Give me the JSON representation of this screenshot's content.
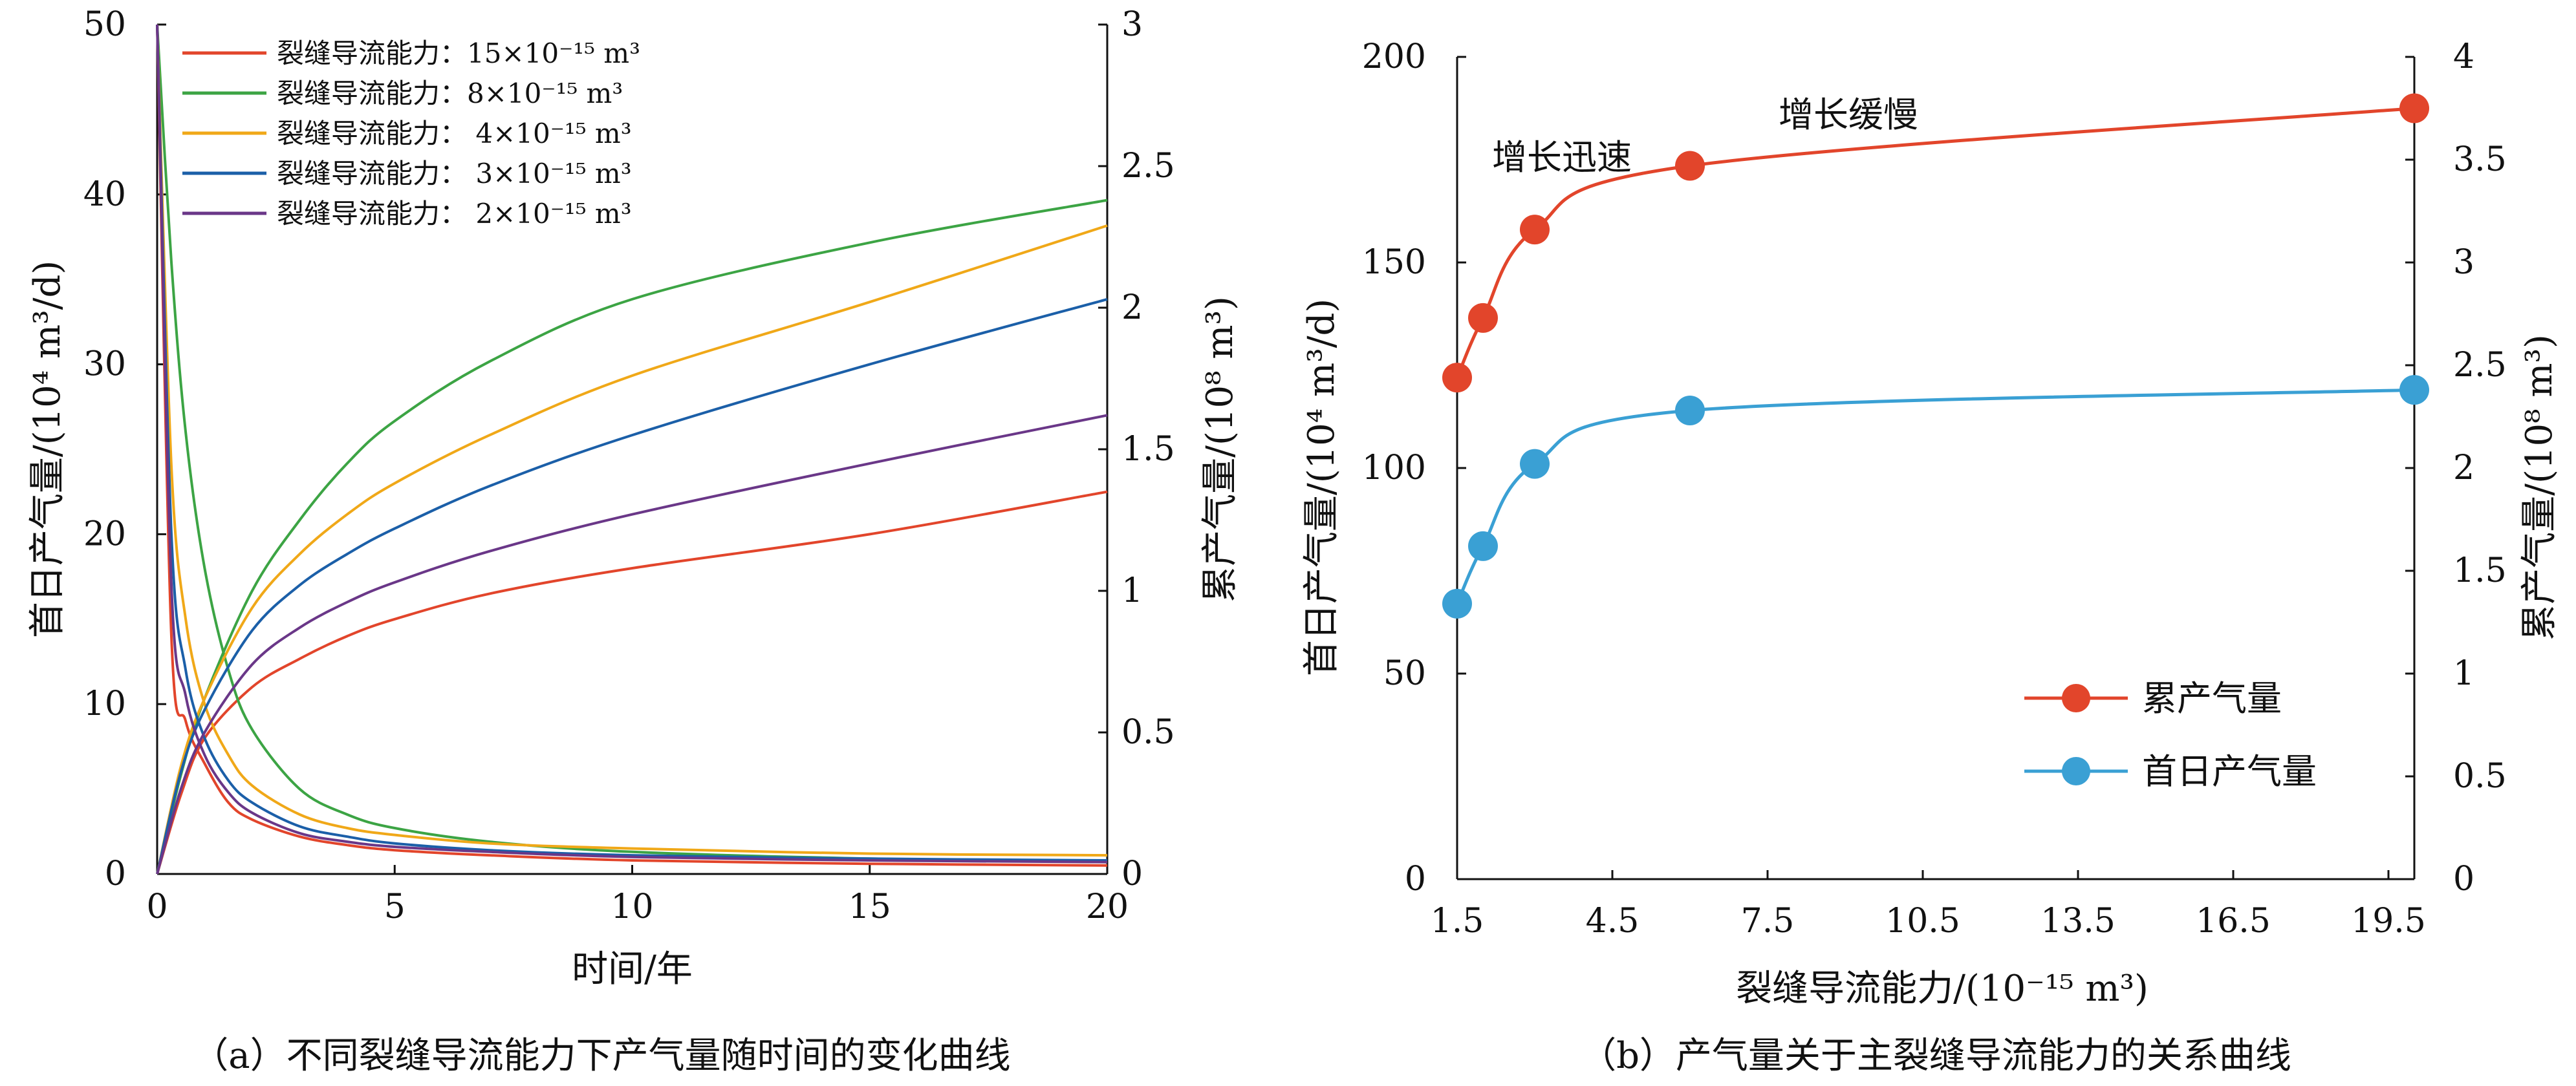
{
  "colors": {
    "red": "#e2452b",
    "green": "#3ca444",
    "yellow": "#f0a818",
    "blue": "#1b5fa8",
    "purple": "#6a3788",
    "light_blue": "#3aa0d4"
  },
  "chart_data": [
    {
      "type": "line",
      "caption": "（a）不同裂缝导流能力下产气量随时间的变化曲线",
      "xlabel": "时间/年",
      "ylabel_left": "首日产气量/(10⁴ m³/d)",
      "ylabel_right": "累产气量/(10⁸ m³)",
      "xlim": [
        0,
        20
      ],
      "ylim_left": [
        0,
        50
      ],
      "ylim_right": [
        0,
        3
      ],
      "x_ticks": [
        "0",
        "5",
        "10",
        "15",
        "20"
      ],
      "y_left_ticks": [
        "0",
        "10",
        "20",
        "30",
        "40",
        "50"
      ],
      "y_right_ticks": [
        "0",
        "0.5",
        "1",
        "1.5",
        "2",
        "2.5",
        "3"
      ],
      "legend_position": "top-left",
      "series": [
        {
          "name": "裂缝导流能力：15×10⁻¹⁵ m³",
          "color": "red",
          "daily_rate": {
            "x": [
              0,
              0.3,
              0.6,
              1,
              1.5,
              2,
              3,
              4,
              5,
              7,
              10,
              15,
              20
            ],
            "y": [
              50,
              14,
              9,
              6.5,
              4.2,
              3.2,
              2.2,
              1.7,
              1.4,
              1.1,
              0.8,
              0.6,
              0.5
            ]
          },
          "cumulative": {
            "x": [
              0,
              0.5,
              1,
              2,
              3,
              4,
              5,
              7,
              10,
              15,
              20
            ],
            "y": [
              0,
              0.28,
              0.48,
              0.66,
              0.76,
              0.84,
              0.9,
              0.99,
              1.08,
              1.2,
              1.35
            ]
          }
        },
        {
          "name": "裂缝导流能力：8×10⁻¹⁵ m³",
          "color": "green",
          "daily_rate": {
            "x": [
              0,
              0.3,
              0.6,
              1,
              1.5,
              2,
              3,
              4,
              5,
              7,
              10,
              15,
              20
            ],
            "y": [
              50,
              36,
              26,
              18,
              12,
              8.5,
              5,
              3.5,
              2.7,
              1.9,
              1.3,
              0.9,
              0.7
            ]
          },
          "cumulative": {
            "x": [
              0,
              0.5,
              1,
              2,
              3,
              4,
              5,
              7,
              10,
              15,
              20
            ],
            "y": [
              0,
              0.35,
              0.62,
              1.0,
              1.25,
              1.45,
              1.6,
              1.81,
              2.03,
              2.23,
              2.38
            ]
          }
        },
        {
          "name": "裂缝导流能力： 4×10⁻¹⁵ m³",
          "color": "yellow",
          "daily_rate": {
            "x": [
              0,
              0.3,
              0.6,
              1,
              1.5,
              2,
              3,
              4,
              5,
              7,
              10,
              15,
              20
            ],
            "y": [
              50,
              24,
              15,
              10,
              7,
              5.2,
              3.5,
              2.7,
              2.3,
              1.8,
              1.5,
              1.2,
              1.1
            ]
          },
          "cumulative": {
            "x": [
              0,
              0.5,
              1,
              2,
              3,
              4,
              5,
              7,
              10,
              15,
              20
            ],
            "y": [
              0,
              0.38,
              0.62,
              0.94,
              1.13,
              1.27,
              1.38,
              1.55,
              1.76,
              2.02,
              2.29
            ]
          }
        },
        {
          "name": "裂缝导流能力： 3×10⁻¹⁵ m³",
          "color": "blue",
          "daily_rate": {
            "x": [
              0,
              0.3,
              0.6,
              1,
              1.5,
              2,
              3,
              4,
              5,
              7,
              10,
              15,
              20
            ],
            "y": [
              50,
              20,
              12,
              8,
              5.5,
              4.2,
              2.8,
              2.2,
              1.8,
              1.4,
              1.1,
              0.9,
              0.8
            ]
          },
          "cumulative": {
            "x": [
              0,
              0.5,
              1,
              2,
              3,
              4,
              5,
              7,
              10,
              15,
              20
            ],
            "y": [
              0,
              0.36,
              0.58,
              0.86,
              1.02,
              1.13,
              1.22,
              1.37,
              1.55,
              1.8,
              2.03
            ]
          }
        },
        {
          "name": "裂缝导流能力： 2×10⁻¹⁵ m³",
          "color": "purple",
          "daily_rate": {
            "x": [
              0,
              0.3,
              0.6,
              1,
              1.5,
              2,
              3,
              4,
              5,
              7,
              10,
              15,
              20
            ],
            "y": [
              50,
              17,
              10.5,
              7,
              4.8,
              3.6,
              2.4,
              1.9,
              1.6,
              1.3,
              1.0,
              0.8,
              0.7
            ]
          },
          "cumulative": {
            "x": [
              0,
              0.5,
              1,
              2,
              3,
              4,
              5,
              7,
              10,
              15,
              20
            ],
            "y": [
              0,
              0.3,
              0.5,
              0.74,
              0.87,
              0.96,
              1.03,
              1.14,
              1.27,
              1.45,
              1.62
            ]
          }
        }
      ]
    },
    {
      "type": "line",
      "caption": "（b）产气量关于主裂缝导流能力的关系曲线",
      "xlabel": "裂缝导流能力/(10⁻¹⁵ m³)",
      "ylabel_left": "首日产气量/(10⁴ m³/d)",
      "ylabel_right": "累产气量/(10⁸ m³)",
      "xlim": [
        1.5,
        20
      ],
      "ylim_left": [
        0,
        200
      ],
      "ylim_right": [
        0,
        4
      ],
      "x_ticks": [
        "1.5",
        "4.5",
        "7.5",
        "10.5",
        "13.5",
        "16.5",
        "19.5"
      ],
      "y_left_ticks": [
        "0",
        "50",
        "100",
        "150",
        "200"
      ],
      "y_right_ticks": [
        "0",
        "0.5",
        "1",
        "1.5",
        "2",
        "2.5",
        "3",
        "3.5",
        "4"
      ],
      "legend_position": "bottom-right",
      "annotations": [
        "增长迅速",
        "增长缓慢"
      ],
      "series": [
        {
          "name": "累产气量",
          "color": "red",
          "axis": "right",
          "x": [
            1.5,
            2,
            3,
            6,
            20
          ],
          "y": [
            2.44,
            2.73,
            3.16,
            3.47,
            3.75
          ]
        },
        {
          "name": "首日产气量",
          "color": "light_blue",
          "axis": "left",
          "x": [
            1.5,
            2,
            3,
            6,
            20
          ],
          "y": [
            67,
            81,
            101,
            114,
            119
          ]
        }
      ]
    }
  ]
}
